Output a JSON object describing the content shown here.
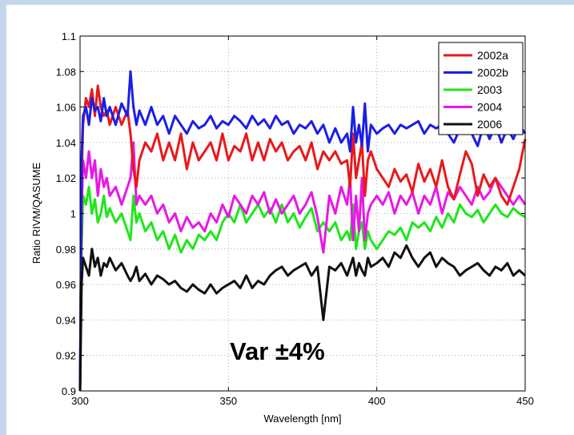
{
  "chart_data": {
    "type": "line",
    "title": "",
    "xlabel": "Wavelength [nm]",
    "ylabel": "Ratio RIVM/QASUME",
    "xlim": [
      300,
      450
    ],
    "ylim": [
      0.9,
      1.1
    ],
    "xticks": [
      300,
      350,
      400,
      450
    ],
    "yticks": [
      0.9,
      0.92,
      0.94,
      0.96,
      0.98,
      1,
      1.02,
      1.04,
      1.06,
      1.08,
      1.1
    ],
    "xtick_labels": [
      "300",
      "350",
      "400",
      "450"
    ],
    "ytick_labels": [
      "0.9",
      "0.92",
      "0.94",
      "0.96",
      "0.98",
      "1",
      "1.02",
      "1.04",
      "1.06",
      "1.08",
      "1.1"
    ],
    "grid": true,
    "legend_position": "top-right",
    "annotation": "Var ±4%",
    "series": [
      {
        "name": "2002a",
        "color": "#e8191b",
        "x": [
          300,
          300.5,
          301,
          302,
          303,
          304,
          305,
          306,
          307,
          308,
          309,
          310,
          312,
          314,
          316,
          317,
          318,
          319,
          320,
          322,
          324,
          326,
          328,
          330,
          332,
          334,
          336,
          338,
          340,
          342,
          344,
          346,
          348,
          350,
          352,
          354,
          356,
          358,
          360,
          362,
          364,
          366,
          368,
          370,
          372,
          374,
          376,
          378,
          380,
          382,
          384,
          386,
          388,
          390,
          391,
          392,
          393,
          394,
          395,
          396,
          397,
          398,
          400,
          402,
          404,
          406,
          408,
          410,
          412,
          414,
          416,
          418,
          420,
          422,
          424,
          426,
          428,
          430,
          432,
          434,
          436,
          438,
          440,
          442,
          444,
          446,
          448,
          450
        ],
        "y": [
          0.9,
          1.02,
          1.05,
          1.065,
          1.06,
          1.07,
          1.055,
          1.072,
          1.06,
          1.055,
          1.058,
          1.05,
          1.06,
          1.05,
          1.058,
          1.045,
          1.025,
          1.015,
          1.03,
          1.04,
          1.035,
          1.045,
          1.03,
          1.04,
          1.03,
          1.045,
          1.025,
          1.04,
          1.03,
          1.035,
          1.04,
          1.03,
          1.045,
          1.03,
          1.038,
          1.035,
          1.045,
          1.03,
          1.04,
          1.03,
          1.042,
          1.035,
          1.04,
          1.03,
          1.035,
          1.038,
          1.03,
          1.04,
          1.025,
          1.035,
          1.03,
          1.035,
          1.028,
          1.03,
          1.015,
          1.045,
          1.02,
          1.03,
          1.04,
          1.01,
          1.03,
          1.035,
          1.025,
          1.02,
          1.015,
          1.025,
          1.018,
          1.022,
          1.012,
          1.028,
          1.018,
          1.025,
          1.015,
          1.03,
          1.015,
          1.008,
          1.022,
          1.035,
          1.028,
          1.01,
          1.022,
          1.015,
          1.02,
          1.01,
          1.005,
          1.015,
          1.025,
          1.042
        ]
      },
      {
        "name": "2002b",
        "color": "#1c1ee6",
        "x": [
          300,
          300.5,
          301,
          302,
          303,
          304,
          305,
          306,
          307,
          308,
          309,
          310,
          312,
          314,
          316,
          317,
          318,
          319,
          320,
          322,
          324,
          326,
          328,
          330,
          332,
          334,
          336,
          338,
          340,
          342,
          344,
          346,
          348,
          350,
          352,
          354,
          356,
          358,
          360,
          362,
          364,
          366,
          368,
          370,
          372,
          374,
          376,
          378,
          380,
          382,
          384,
          386,
          388,
          390,
          391,
          392,
          393,
          394,
          395,
          396,
          397,
          398,
          400,
          402,
          404,
          406,
          408,
          410,
          412,
          414,
          416,
          418,
          420,
          422,
          424,
          426,
          428,
          430,
          432,
          434,
          436,
          438,
          440,
          442,
          444,
          446,
          448,
          450
        ],
        "y": [
          0.9,
          1.03,
          1.055,
          1.06,
          1.05,
          1.065,
          1.058,
          1.06,
          1.052,
          1.065,
          1.055,
          1.06,
          1.05,
          1.062,
          1.055,
          1.08,
          1.06,
          1.05,
          1.058,
          1.05,
          1.06,
          1.05,
          1.055,
          1.045,
          1.055,
          1.05,
          1.045,
          1.052,
          1.048,
          1.05,
          1.055,
          1.048,
          1.052,
          1.05,
          1.055,
          1.052,
          1.048,
          1.055,
          1.05,
          1.053,
          1.048,
          1.055,
          1.05,
          1.052,
          1.045,
          1.05,
          1.048,
          1.052,
          1.045,
          1.05,
          1.04,
          1.048,
          1.04,
          1.045,
          1.035,
          1.06,
          1.04,
          1.05,
          1.038,
          1.062,
          1.035,
          1.05,
          1.045,
          1.048,
          1.05,
          1.045,
          1.05,
          1.048,
          1.05,
          1.052,
          1.045,
          1.05,
          1.048,
          1.05,
          1.045,
          1.04,
          1.048,
          1.05,
          1.045,
          1.038,
          1.05,
          1.042,
          1.05,
          1.04,
          1.048,
          1.042,
          1.05,
          1.045
        ]
      },
      {
        "name": "2003",
        "color": "#1fe61a",
        "x": [
          300,
          300.5,
          301,
          302,
          303,
          304,
          305,
          306,
          307,
          308,
          309,
          310,
          312,
          314,
          316,
          317,
          318,
          319,
          320,
          322,
          324,
          326,
          328,
          330,
          332,
          334,
          336,
          338,
          340,
          342,
          344,
          346,
          348,
          350,
          352,
          354,
          356,
          358,
          360,
          362,
          364,
          366,
          368,
          370,
          372,
          374,
          376,
          378,
          380,
          382,
          384,
          386,
          388,
          390,
          391,
          392,
          393,
          394,
          395,
          396,
          397,
          398,
          400,
          402,
          404,
          406,
          408,
          410,
          412,
          414,
          416,
          418,
          420,
          422,
          424,
          426,
          428,
          430,
          432,
          434,
          436,
          438,
          440,
          442,
          444,
          446,
          448,
          450
        ],
        "y": [
          0.9,
          0.98,
          1.01,
          1.005,
          1.015,
          1.0,
          1.008,
          0.995,
          1.0,
          1.01,
          0.998,
          1.003,
          0.995,
          1.0,
          0.99,
          0.985,
          1.01,
          0.995,
          1.0,
          0.99,
          0.995,
          0.985,
          0.99,
          0.98,
          0.988,
          0.978,
          0.985,
          0.98,
          0.988,
          0.985,
          0.99,
          0.985,
          0.995,
          1.0,
          0.995,
          1.005,
          0.995,
          1.0,
          1.005,
          0.998,
          1.003,
          0.995,
          1.005,
          0.995,
          1.0,
          0.992,
          0.998,
          1.003,
          0.99,
          0.995,
          0.99,
          0.995,
          0.985,
          0.99,
          0.985,
          1.005,
          0.98,
          0.99,
          0.995,
          0.98,
          0.99,
          0.985,
          0.98,
          0.985,
          0.99,
          0.988,
          0.992,
          0.985,
          0.995,
          0.992,
          0.995,
          0.99,
          0.998,
          0.992,
          1.0,
          0.995,
          1.005,
          1.0,
          0.998,
          1.002,
          0.995,
          1.0,
          1.005,
          1.0,
          0.998,
          1.003,
          1.0,
          0.998
        ]
      },
      {
        "name": "2004",
        "color": "#e619e4",
        "x": [
          300,
          300.5,
          301,
          302,
          303,
          304,
          305,
          306,
          307,
          308,
          309,
          310,
          312,
          314,
          316,
          317,
          318,
          319,
          320,
          322,
          324,
          326,
          328,
          330,
          332,
          334,
          336,
          338,
          340,
          342,
          344,
          346,
          348,
          350,
          352,
          354,
          356,
          358,
          360,
          362,
          364,
          366,
          368,
          370,
          372,
          374,
          376,
          378,
          380,
          382,
          384,
          386,
          388,
          390,
          391,
          392,
          393,
          394,
          395,
          396,
          397,
          398,
          400,
          402,
          404,
          406,
          408,
          410,
          412,
          414,
          416,
          418,
          420,
          422,
          424,
          426,
          428,
          430,
          432,
          434,
          436,
          438,
          440,
          442,
          444,
          446,
          448,
          450
        ],
        "y": [
          0.9,
          1.0,
          1.03,
          1.02,
          1.035,
          1.02,
          1.03,
          1.01,
          1.025,
          1.015,
          1.02,
          1.01,
          1.015,
          1.005,
          1.015,
          1.02,
          1.04,
          1.005,
          1.01,
          1.005,
          1.01,
          1.0,
          1.005,
          0.995,
          1.0,
          0.99,
          0.998,
          0.992,
          0.995,
          0.99,
          1.0,
          0.995,
          1.005,
          0.998,
          1.01,
          1.005,
          1.0,
          1.01,
          1.005,
          1.012,
          1.0,
          1.008,
          1.0,
          1.005,
          1.01,
          1.0,
          1.005,
          1.012,
          0.998,
          0.978,
          1.01,
          1.0,
          1.015,
          1.005,
          1.02,
          0.985,
          1.01,
          0.99,
          1.02,
          0.985,
          1.0,
          1.005,
          1.01,
          1.005,
          1.012,
          1.0,
          1.01,
          1.005,
          1.012,
          1.0,
          1.01,
          1.005,
          1.015,
          1.0,
          1.012,
          1.008,
          1.015,
          1.01,
          1.005,
          1.015,
          1.008,
          1.012,
          1.02,
          1.015,
          1.01,
          1.005,
          1.01,
          1.005
        ]
      },
      {
        "name": "2006",
        "color": "#111111",
        "x": [
          300,
          300.5,
          301,
          302,
          303,
          304,
          305,
          306,
          307,
          308,
          309,
          310,
          312,
          314,
          316,
          317,
          318,
          319,
          320,
          322,
          324,
          326,
          328,
          330,
          332,
          334,
          336,
          338,
          340,
          342,
          344,
          346,
          348,
          350,
          352,
          354,
          356,
          358,
          360,
          362,
          364,
          366,
          368,
          370,
          372,
          374,
          376,
          378,
          380,
          382,
          384,
          386,
          388,
          390,
          391,
          392,
          393,
          394,
          395,
          396,
          397,
          398,
          400,
          402,
          404,
          406,
          408,
          410,
          412,
          414,
          416,
          418,
          420,
          422,
          424,
          426,
          428,
          430,
          432,
          434,
          436,
          438,
          440,
          442,
          444,
          446,
          448,
          450
        ],
        "y": [
          0.9,
          0.96,
          0.975,
          0.97,
          0.965,
          0.98,
          0.97,
          0.975,
          0.965,
          0.972,
          0.97,
          0.975,
          0.968,
          0.972,
          0.965,
          0.962,
          0.965,
          0.97,
          0.962,
          0.966,
          0.96,
          0.965,
          0.963,
          0.96,
          0.962,
          0.958,
          0.956,
          0.96,
          0.957,
          0.955,
          0.96,
          0.955,
          0.958,
          0.96,
          0.962,
          0.958,
          0.965,
          0.958,
          0.962,
          0.96,
          0.965,
          0.968,
          0.97,
          0.965,
          0.968,
          0.97,
          0.972,
          0.965,
          0.97,
          0.94,
          0.97,
          0.968,
          0.972,
          0.965,
          0.97,
          0.975,
          0.965,
          0.972,
          0.968,
          0.965,
          0.975,
          0.97,
          0.972,
          0.975,
          0.97,
          0.978,
          0.975,
          0.982,
          0.975,
          0.97,
          0.975,
          0.978,
          0.97,
          0.975,
          0.972,
          0.97,
          0.965,
          0.968,
          0.97,
          0.972,
          0.968,
          0.965,
          0.97,
          0.968,
          0.972,
          0.965,
          0.968,
          0.965
        ]
      }
    ]
  }
}
